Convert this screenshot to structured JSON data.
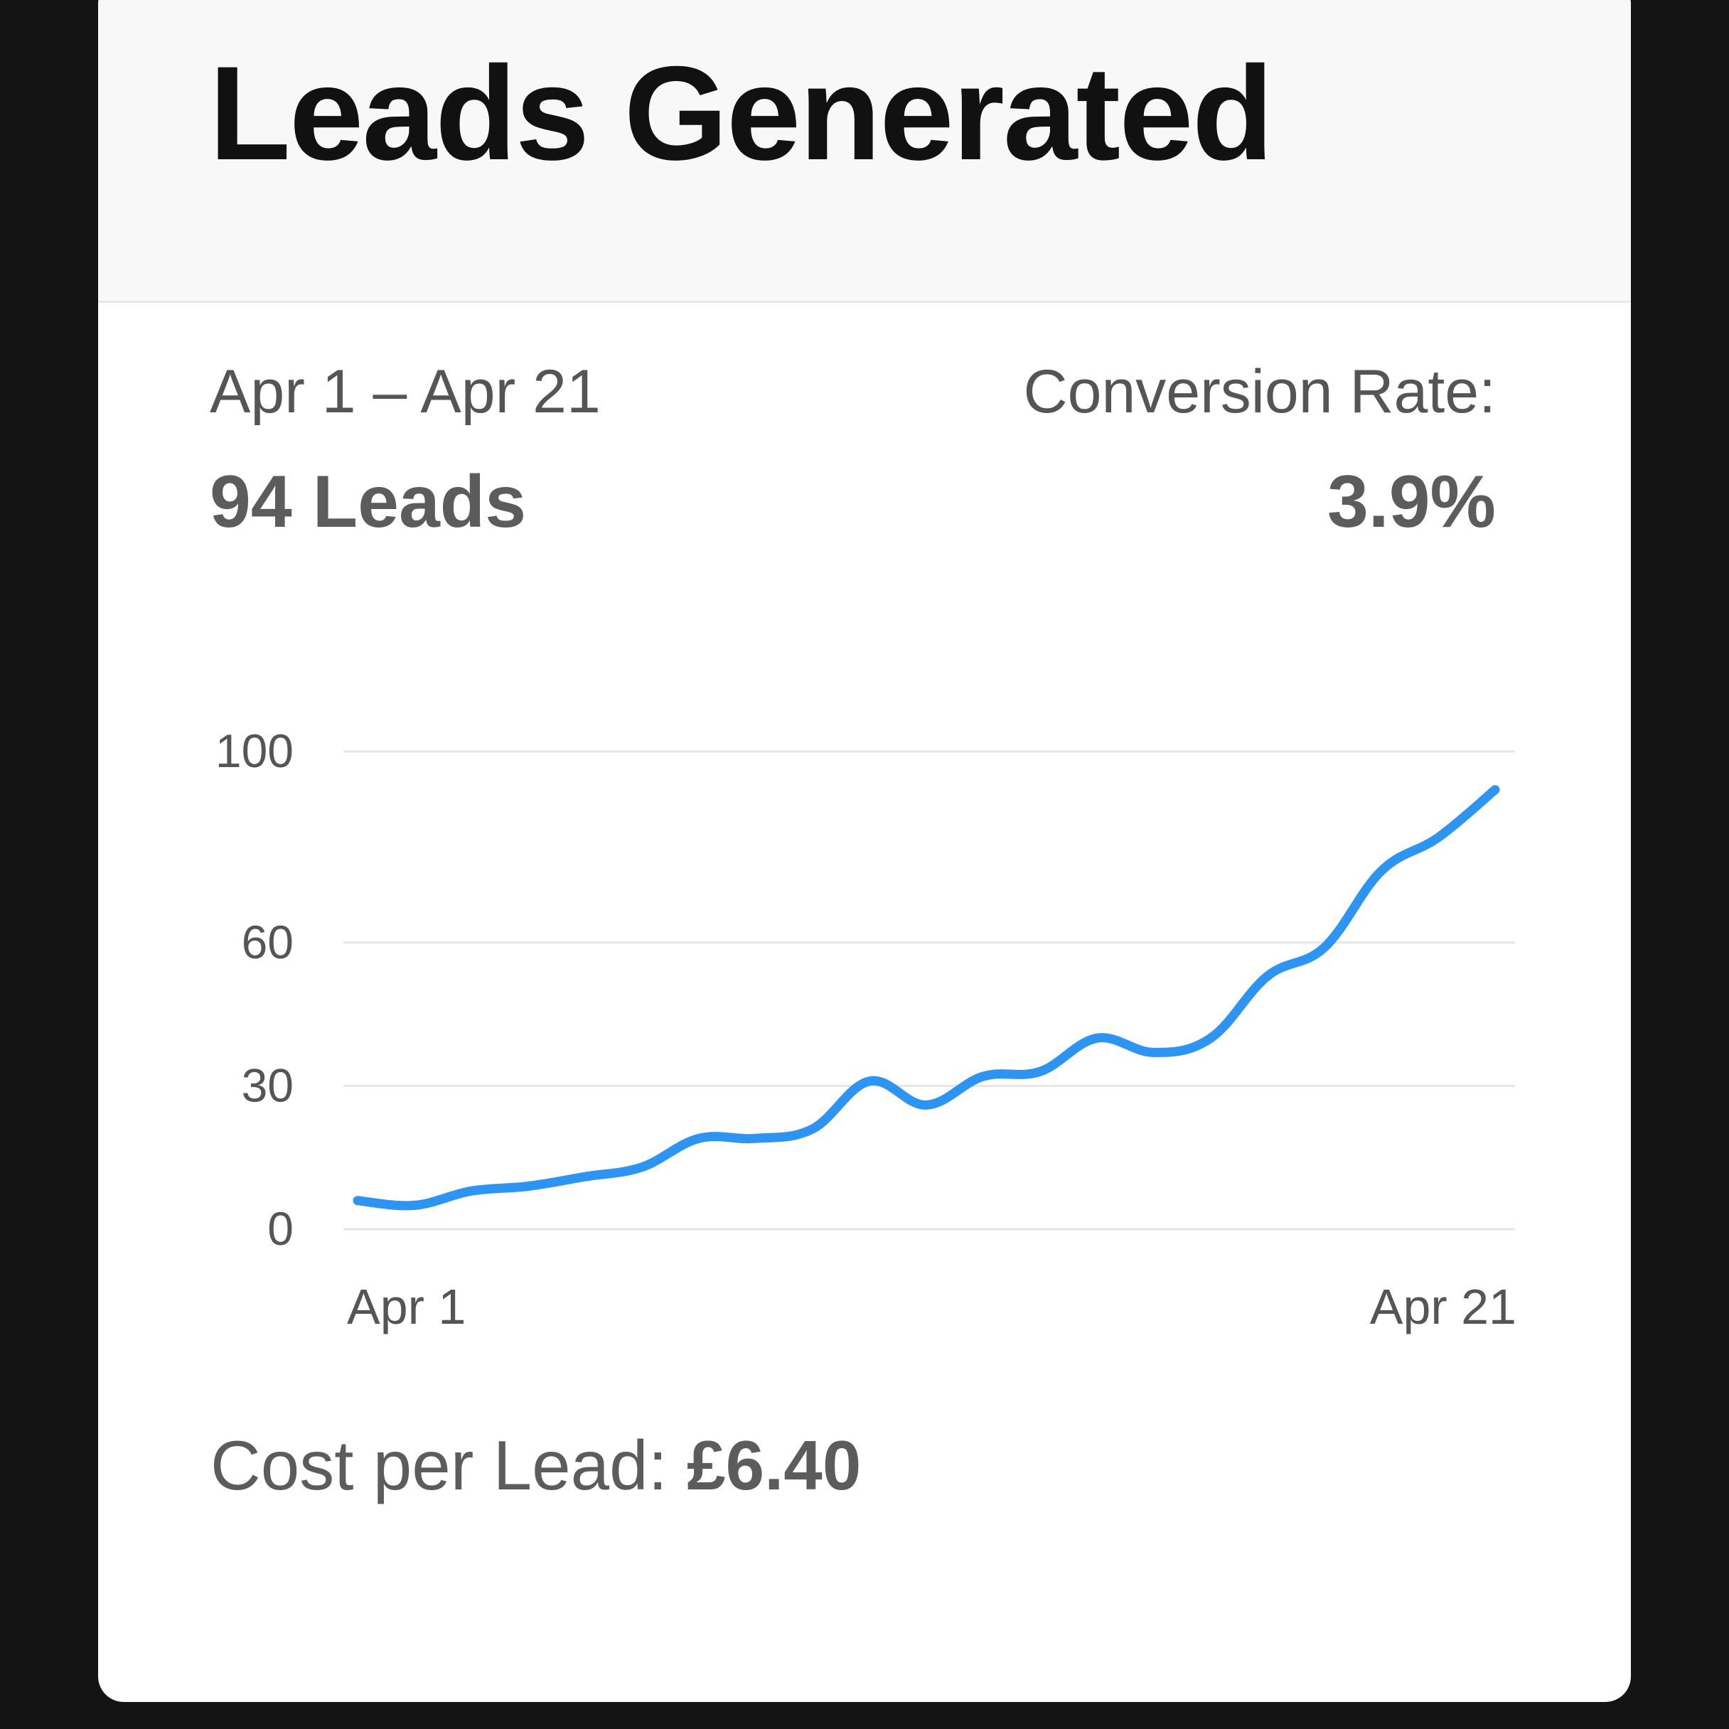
{
  "card": {
    "title": "Leads Generated",
    "date_range": "Apr 1 – Apr 21",
    "leads_total": "94 Leads",
    "conversion_label": "Conversion Rate:",
    "conversion_value": "3.9%",
    "cost_label": "Cost per Lead:",
    "cost_value": "£6.40"
  },
  "colors": {
    "line": "#2E94F2",
    "grid": "#e6e6e6",
    "axis_text": "#555555"
  },
  "chart_data": {
    "type": "line",
    "title": "",
    "xlabel": "",
    "ylabel": "",
    "ylim": [
      0,
      100
    ],
    "y_ticks": [
      0,
      30,
      60,
      100
    ],
    "x_tick_labels": [
      "Apr 1",
      "Apr 21"
    ],
    "grid": true,
    "x": [
      "Apr 1",
      "Apr 2",
      "Apr 3",
      "Apr 4",
      "Apr 5",
      "Apr 6",
      "Apr 7",
      "Apr 8",
      "Apr 9",
      "Apr 10",
      "Apr 11",
      "Apr 12",
      "Apr 13",
      "Apr 14",
      "Apr 15",
      "Apr 16",
      "Apr 17",
      "Apr 18",
      "Apr 19",
      "Apr 20",
      "Apr 21"
    ],
    "series": [
      {
        "values": [
          6,
          5,
          8,
          9,
          11,
          13,
          19,
          19,
          21,
          31,
          26,
          32,
          33,
          40,
          37,
          40,
          53,
          59,
          75,
          82,
          92
        ]
      }
    ]
  }
}
